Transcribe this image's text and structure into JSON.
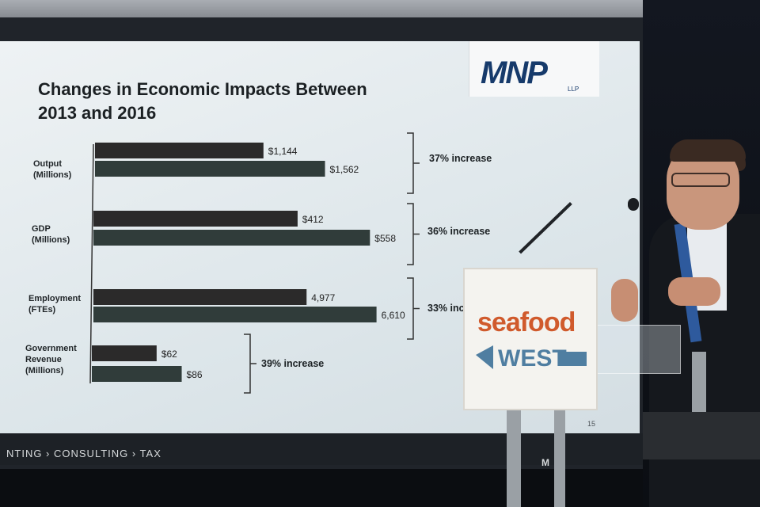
{
  "slide": {
    "title": "Changes in Economic Impacts Between 2013 and 2016",
    "logo": "MNP",
    "logo_sub": "LLP",
    "footer": "NTING  ›  CONSULTING  ›  TAX",
    "footer_code": "M",
    "page": "15"
  },
  "annotations": [
    {
      "text": "37% increase"
    },
    {
      "text": "36% increase"
    },
    {
      "text": "33% increa"
    },
    {
      "text": "39% increase"
    }
  ],
  "categories": [
    {
      "line1": "Output",
      "line2": "(Millions)",
      "line3": ""
    },
    {
      "line1": "GDP",
      "line2": "(Millions)",
      "line3": ""
    },
    {
      "line1": "Employment",
      "line2": "(FTEs)",
      "line3": ""
    },
    {
      "line1": "Government",
      "line2": "Revenue",
      "line3": "(Millions)"
    }
  ],
  "chart_data": {
    "type": "bar",
    "orientation": "horizontal",
    "title": "Changes in Economic Impacts Between 2013 and 2016",
    "groups": [
      {
        "category": "Output (Millions)",
        "values": [
          1144,
          1562
        ],
        "labels": [
          "$1,144",
          "$1,562"
        ]
      },
      {
        "category": "GDP (Millions)",
        "values": [
          412,
          558
        ],
        "labels": [
          "$412",
          "$558"
        ]
      },
      {
        "category": "Employment (FTEs)",
        "values": [
          4977,
          6610
        ],
        "labels": [
          "4,977",
          "6,610"
        ]
      },
      {
        "category": "Government Revenue (Millions)",
        "values": [
          62,
          86
        ],
        "labels": [
          "$62",
          "$86"
        ]
      }
    ],
    "colors": {
      "first": "#2b2a2a",
      "second": "#303c3a"
    }
  },
  "sign": {
    "line1": "seafood",
    "line2": "WEST"
  }
}
